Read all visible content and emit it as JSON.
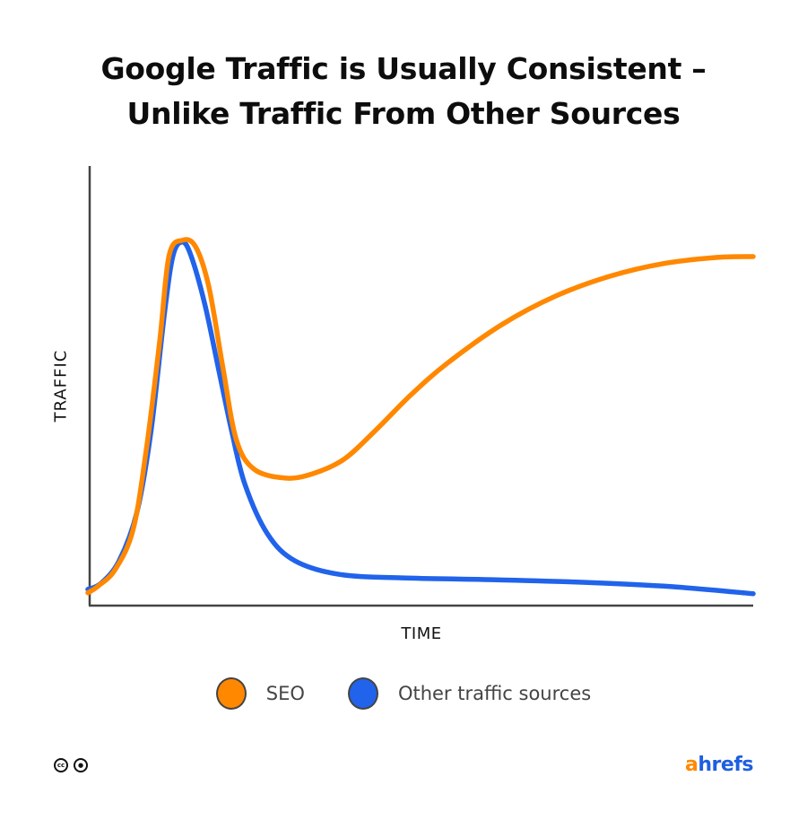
{
  "chart_data": {
    "type": "line",
    "title": "Google Traffic is Usually Consistent – Unlike Traffic From Other Sources",
    "title_lines": [
      "Google Traffic is Usually Consistent –",
      "Unlike Traffic From Other Sources"
    ],
    "xlabel": "TIME",
    "ylabel": "TRAFFIC",
    "xlim": [
      0,
      100
    ],
    "ylim": [
      0,
      100
    ],
    "grid": false,
    "legend_position": "bottom",
    "series": [
      {
        "name": "SEO",
        "color": "#FF8800",
        "x": [
          0,
          1.6,
          4.1,
          6.8,
          8.8,
          10.8,
          12.2,
          14.2,
          16.2,
          18.2,
          20.3,
          22.3,
          25,
          29.7,
          33.8,
          38.5,
          43.2,
          48.6,
          54,
          62.2,
          70.3,
          78.4,
          86.5,
          94.6,
          100
        ],
        "y": [
          2.9,
          4.5,
          8.2,
          17.3,
          35.7,
          60.2,
          79.6,
          83.1,
          81.6,
          72.4,
          54.1,
          37.8,
          31,
          29,
          30,
          33.3,
          39.8,
          48,
          55.1,
          63.9,
          70.4,
          74.9,
          77.8,
          79.2,
          79.4
        ]
      },
      {
        "name": "Other traffic sources",
        "color": "#2163EA",
        "x": [
          0,
          2,
          4.7,
          7.4,
          9.5,
          11.5,
          12.8,
          14.2,
          15.5,
          17.6,
          19.6,
          21.6,
          23.6,
          27,
          31.1,
          37.8,
          47.3,
          60.8,
          74.3,
          87.8,
          100
        ],
        "y": [
          3.7,
          5.1,
          10.2,
          21.4,
          39.8,
          66.3,
          79.6,
          82.7,
          79.6,
          68.4,
          54.1,
          39.8,
          27.6,
          16.3,
          10.2,
          7.1,
          6.3,
          5.9,
          5.3,
          4.3,
          2.7
        ]
      }
    ]
  },
  "footer": {
    "license_icons": [
      "cc-icon",
      "by-icon"
    ],
    "cc_text": "cc",
    "logo_a": "a",
    "logo_rest": "hrefs"
  }
}
